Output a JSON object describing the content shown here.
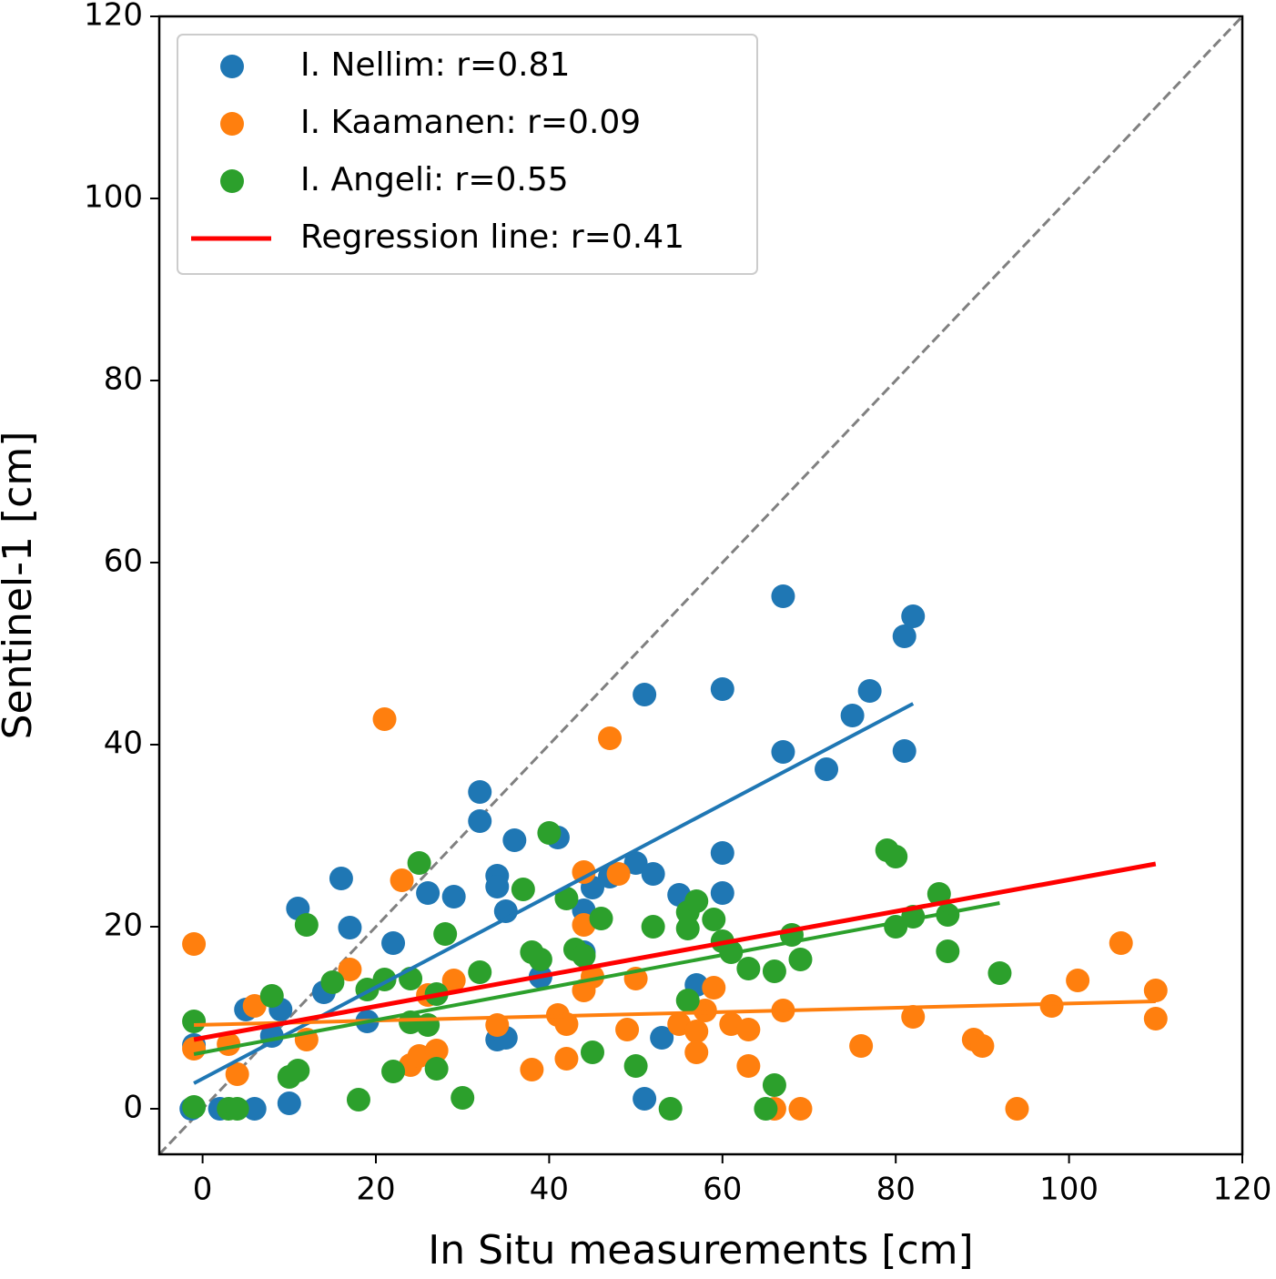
{
  "chart_data": {
    "type": "scatter",
    "xlabel": "In Situ measurements [cm]",
    "ylabel": "Sentinel-1 [cm]",
    "xlim": [
      -5,
      120
    ],
    "ylim": [
      -5,
      120
    ],
    "xticks": [
      0,
      20,
      40,
      60,
      80,
      100,
      120
    ],
    "yticks": [
      0,
      20,
      40,
      60,
      80,
      100,
      120
    ],
    "legend_position": "upper left",
    "series": [
      {
        "name": "I. Nellim: r=0.81",
        "color": "#1f77b4",
        "x": [
          -1.3,
          -1,
          2,
          6,
          10,
          5,
          9,
          11,
          8,
          16,
          17,
          14,
          19,
          22,
          26,
          29,
          32,
          32,
          34,
          34,
          35,
          36,
          34,
          35,
          39,
          41,
          44,
          44,
          45,
          47,
          50,
          51,
          52,
          51,
          53,
          55,
          57,
          60,
          60,
          60,
          67,
          67,
          72,
          75,
          77,
          81,
          82,
          81
        ],
        "values": [
          0,
          7,
          0,
          0,
          0.6,
          10.9,
          10.9,
          22,
          8,
          25.3,
          19.9,
          12.8,
          9.6,
          18.2,
          23.7,
          23.3,
          34.8,
          31.6,
          25.6,
          24.4,
          21.7,
          29.5,
          7.6,
          7.8,
          14.5,
          29.8,
          21.8,
          17.2,
          24.3,
          25.5,
          27,
          45.5,
          25.8,
          1.1,
          7.8,
          23.5,
          13.6,
          46.1,
          28.1,
          23.7,
          56.3,
          39.2,
          37.3,
          43.2,
          45.9,
          51.9,
          54.1,
          39.3
        ],
        "fit": {
          "x": [
            -1,
            82
          ],
          "values": [
            2.8,
            44.5
          ]
        }
      },
      {
        "name": "I. Kaamanen: r=0.09",
        "color": "#ff7f0e",
        "x": [
          -1,
          -1,
          3,
          4,
          6,
          12,
          17,
          21,
          23,
          24,
          25,
          26,
          27,
          29,
          34,
          38,
          41,
          42,
          42,
          44,
          44,
          44,
          45,
          47,
          48,
          49,
          50,
          55,
          57,
          57,
          58,
          59,
          61,
          63,
          63,
          66,
          67,
          69,
          76,
          82,
          89,
          90,
          94,
          98,
          101,
          106,
          110,
          110
        ],
        "values": [
          18.1,
          6.6,
          7.1,
          3.8,
          11.3,
          7.6,
          15.3,
          42.8,
          25.1,
          4.8,
          5.8,
          12.5,
          6.4,
          14.1,
          9.2,
          4.3,
          10.3,
          9.3,
          5.5,
          20.2,
          26,
          13,
          14.5,
          40.7,
          25.8,
          8.7,
          14.3,
          9.3,
          8.5,
          6.2,
          10.8,
          13.3,
          9.3,
          8.7,
          4.7,
          0,
          10.8,
          0,
          6.9,
          10.1,
          7.6,
          6.9,
          0,
          11.3,
          14.1,
          18.2,
          13,
          9.9
        ],
        "fit": {
          "x": [
            -1,
            110
          ],
          "values": [
            9.2,
            11.8
          ]
        }
      },
      {
        "name": "I. Angeli: r=0.55",
        "color": "#2ca02c",
        "x": [
          -1,
          -1,
          3,
          4,
          8,
          10,
          11,
          12,
          15,
          18,
          19,
          21,
          22,
          24,
          24,
          25,
          26,
          27,
          27,
          28,
          30,
          32,
          37,
          38,
          39,
          40,
          42,
          43,
          44,
          45,
          46,
          50,
          52,
          54,
          56,
          56,
          56,
          57,
          59,
          60,
          61,
          63,
          65,
          66,
          66,
          68,
          69,
          79,
          80,
          80,
          82,
          85,
          86,
          86,
          92
        ],
        "values": [
          9.6,
          0.2,
          0,
          0,
          12.4,
          3.5,
          4.2,
          20.2,
          13.9,
          1,
          13.1,
          14.2,
          4.1,
          14.3,
          9.5,
          27,
          9.2,
          4.4,
          12.6,
          19.2,
          1.2,
          15,
          24.1,
          17.2,
          16.4,
          30.3,
          23.1,
          17.5,
          16.8,
          6.2,
          20.9,
          4.7,
          20,
          0,
          19.8,
          11.9,
          21.6,
          22.8,
          20.8,
          18.4,
          17.2,
          15.4,
          0,
          2.6,
          15.1,
          19.1,
          16.4,
          28.4,
          27.7,
          20,
          21.1,
          23.6,
          21.3,
          17.3,
          14.9
        ],
        "fit": {
          "x": [
            -1,
            92
          ],
          "values": [
            6,
            22.6
          ]
        }
      }
    ],
    "regression_line": {
      "name": "Regression line: r=0.41",
      "color": "#ff0000",
      "x": [
        -1,
        110
      ],
      "values": [
        7.6,
        26.9
      ]
    },
    "reference_line": {
      "color": "#808080",
      "dashed": true,
      "x": [
        -5,
        120
      ],
      "values": [
        -5,
        120
      ]
    }
  }
}
